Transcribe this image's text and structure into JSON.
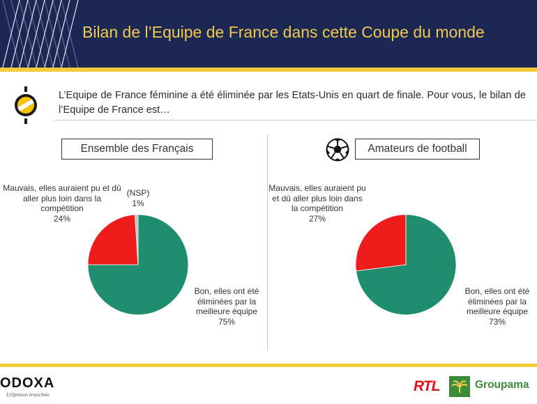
{
  "header": {
    "title": "Bilan de l’Equipe de France dans cette Coupe du monde",
    "background": "#1b2854",
    "accent": "#f7cc3a",
    "pattern_icon": "diagonal-stripes-pattern"
  },
  "question": {
    "icon": "odoxa-question-icon",
    "text": "L’Equipe de France féminine a été éliminée par les Etats-Unis en quart de finale. Pour vous, le bilan de l’Equipe de France est…"
  },
  "chart_data": [
    {
      "type": "pie",
      "title": "Ensemble des Français",
      "slices": [
        {
          "label": "Bon, elles ont été éliminées par la meilleure équipe",
          "value": 75,
          "value_label": "75%",
          "color": "#1e8e6e"
        },
        {
          "label": "Mauvais, elles auraient pu et dû aller plus loin dans la compétition",
          "value": 24,
          "value_label": "24%",
          "color": "#ee1c1c"
        },
        {
          "label": "(NSP)",
          "value": 1,
          "value_label": "1%",
          "color": "#bfbfbf"
        }
      ]
    },
    {
      "type": "pie",
      "title": "Amateurs de football",
      "title_icon": "soccer-ball-icon",
      "slices": [
        {
          "label": "Bon, elles ont été éliminées par la meilleure équipe",
          "value": 73,
          "value_label": "73%",
          "color": "#1e8e6e"
        },
        {
          "label": "Mauvais, elles auraient pu et dû aller plus loin dans la compétition",
          "value": 27,
          "value_label": "27%",
          "color": "#ee1c1c"
        }
      ]
    }
  ],
  "footer": {
    "odoxa_logo": "ODOXA",
    "odoxa_tagline": "L’Opinion tranchée",
    "rtl_logo": "RTL",
    "groupama_icon": "groupama-leaf-icon",
    "groupama_logo": "Groupama"
  }
}
